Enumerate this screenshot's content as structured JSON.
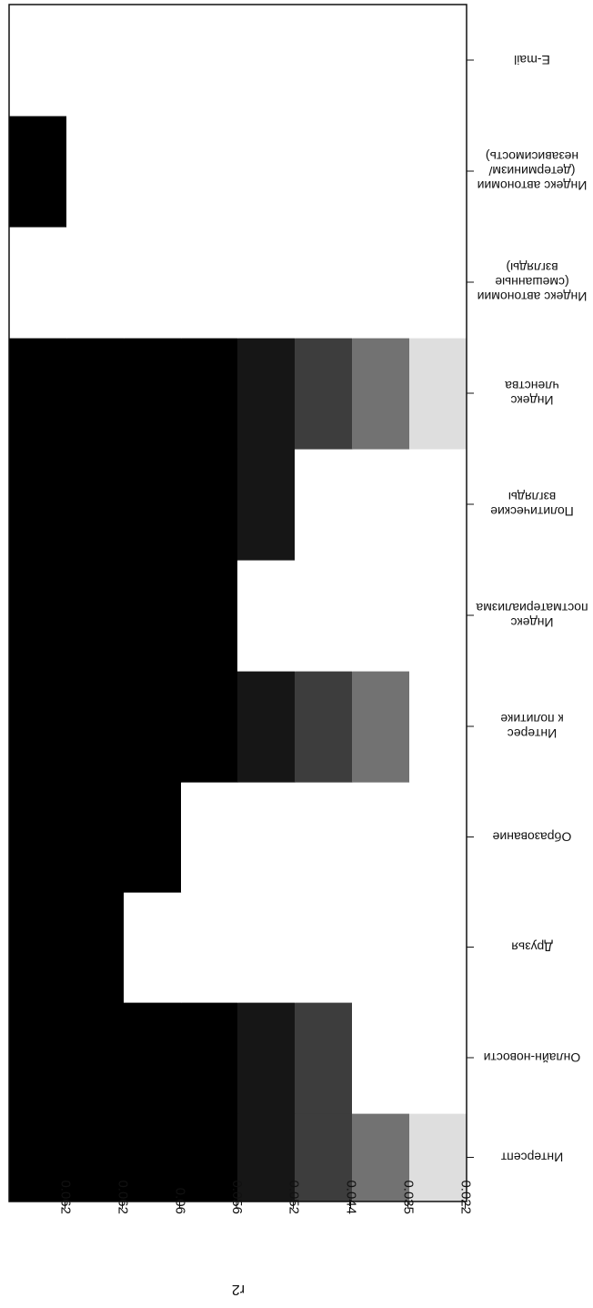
{
  "chart_data": {
    "type": "heatmap",
    "orientation": "rotated-180",
    "ylabel": "r2",
    "y_ticks": [
      "0.062",
      "0.062",
      "0.06",
      "0.056",
      "0.052",
      "0.044",
      "0.035",
      "0.022"
    ],
    "categories": [
      [
        "Интерсепт"
      ],
      [
        "Онлайн-новости"
      ],
      [
        "Друзья"
      ],
      [
        "Образование"
      ],
      [
        "Интерес",
        "к политике"
      ],
      [
        "Индекс",
        "постматериализма"
      ],
      [
        "Политические",
        "взгляды"
      ],
      [
        "Индекс",
        "членства"
      ],
      [
        "Индекс автономии",
        "(смешанные",
        "взгляды)"
      ],
      [
        "Индекс автономии",
        "(детерминизм/",
        "независимость)"
      ],
      [
        "E-mail"
      ]
    ],
    "colors": {
      "black": "#000000",
      "dark": "#161616",
      "mid": "#3d3d3d",
      "gray": "#727272",
      "light": "#dedede",
      "white": "#ffffff"
    },
    "cells": [
      [
        "black",
        "black",
        "black",
        "black",
        "dark",
        "mid",
        "gray",
        "light"
      ],
      [
        "black",
        "black",
        "black",
        "black",
        "dark",
        "mid",
        "white",
        "white"
      ],
      [
        "black",
        "black",
        "white",
        "white",
        "white",
        "white",
        "white",
        "white"
      ],
      [
        "black",
        "black",
        "black",
        "white",
        "white",
        "white",
        "white",
        "white"
      ],
      [
        "black",
        "black",
        "black",
        "black",
        "dark",
        "mid",
        "gray",
        "white"
      ],
      [
        "black",
        "black",
        "black",
        "black",
        "white",
        "white",
        "white",
        "white"
      ],
      [
        "black",
        "black",
        "black",
        "black",
        "dark",
        "white",
        "white",
        "white"
      ],
      [
        "black",
        "black",
        "black",
        "black",
        "dark",
        "mid",
        "gray",
        "light"
      ],
      [
        "white",
        "white",
        "white",
        "white",
        "white",
        "white",
        "white",
        "white"
      ],
      [
        "black",
        "white",
        "white",
        "white",
        "white",
        "white",
        "white",
        "white"
      ],
      [
        "white",
        "white",
        "white",
        "white",
        "white",
        "white",
        "white",
        "white"
      ]
    ]
  }
}
